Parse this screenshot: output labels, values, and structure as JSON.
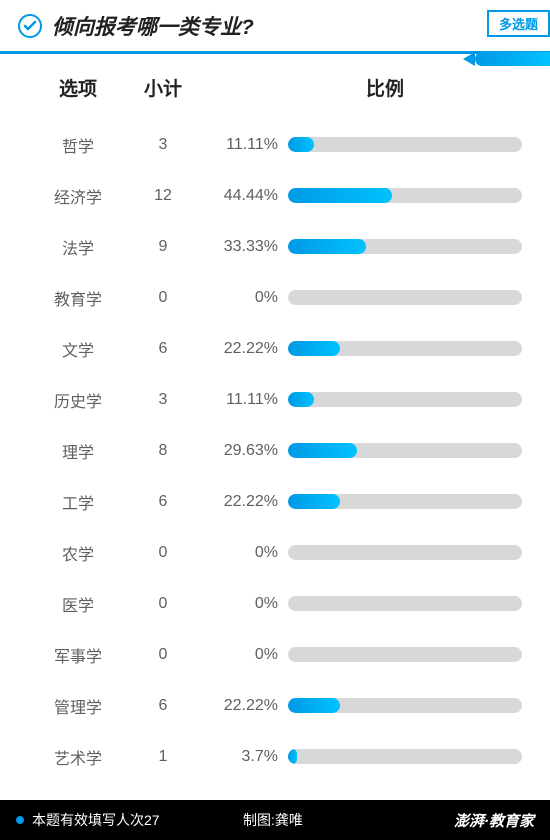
{
  "header": {
    "title": "倾向报考哪一类专业?",
    "badge": "多选题"
  },
  "table": {
    "headers": {
      "option": "选项",
      "count": "小计",
      "ratio": "比例"
    },
    "rows": [
      {
        "option": "哲学",
        "count": "3",
        "pct": "11.11%",
        "width": 11.11
      },
      {
        "option": "经济学",
        "count": "12",
        "pct": "44.44%",
        "width": 44.44
      },
      {
        "option": "法学",
        "count": "9",
        "pct": "33.33%",
        "width": 33.33
      },
      {
        "option": "教育学",
        "count": "0",
        "pct": "0%",
        "width": 0
      },
      {
        "option": "文学",
        "count": "6",
        "pct": "22.22%",
        "width": 22.22
      },
      {
        "option": "历史学",
        "count": "3",
        "pct": "11.11%",
        "width": 11.11
      },
      {
        "option": "理学",
        "count": "8",
        "pct": "29.63%",
        "width": 29.63
      },
      {
        "option": "工学",
        "count": "6",
        "pct": "22.22%",
        "width": 22.22
      },
      {
        "option": "农学",
        "count": "0",
        "pct": "0%",
        "width": 0
      },
      {
        "option": "医学",
        "count": "0",
        "pct": "0%",
        "width": 0
      },
      {
        "option": "军事学",
        "count": "0",
        "pct": "0%",
        "width": 0
      },
      {
        "option": "管理学",
        "count": "6",
        "pct": "22.22%",
        "width": 22.22
      },
      {
        "option": "艺术学",
        "count": "1",
        "pct": "3.7%",
        "width": 3.7
      }
    ]
  },
  "footer": {
    "left": "本题有效填写人次27",
    "mid": "制图:龚唯",
    "right": "澎湃·教育家"
  },
  "style": {
    "bar_bg": "#d8d8d8",
    "bar_fill_start": "#0099e5",
    "bar_fill_end": "#00c2ff",
    "border_color": "#0099e5",
    "text_color": "#606060",
    "header_text": "#222222",
    "footer_bg": "#000000"
  }
}
